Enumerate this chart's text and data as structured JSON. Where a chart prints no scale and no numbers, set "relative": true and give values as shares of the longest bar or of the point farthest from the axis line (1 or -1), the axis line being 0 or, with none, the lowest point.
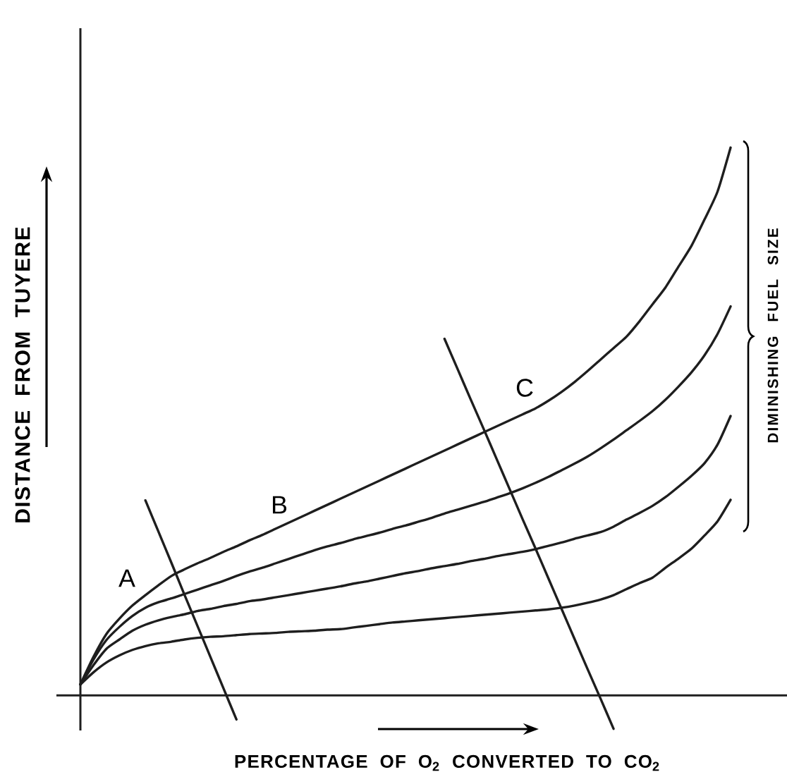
{
  "chart_data": {
    "type": "line",
    "relative": true,
    "xlabel": "PERCENTAGE OF O$_{2}$ CONVERTED TO CO$_{2}$",
    "ylabel": "DISTANCE FROM TUYERE",
    "categories": [
      null,
      null,
      null,
      null,
      null,
      null,
      null,
      null,
      null,
      null,
      null,
      null,
      null,
      null,
      null,
      null,
      null,
      null,
      null,
      null,
      null,
      null,
      null,
      null,
      null,
      null,
      null,
      null,
      null,
      null,
      null,
      null,
      null,
      null,
      null,
      null,
      null,
      null,
      null,
      null,
      null,
      null,
      null,
      null,
      null,
      null,
      null,
      null,
      null,
      null,
      null
    ],
    "series": [
      {
        "type": "line",
        "color": "#1e1e1e",
        "values": [
          0.02,
          0.07,
          0.112,
          0.14,
          0.164,
          0.183,
          0.201,
          0.218,
          0.23,
          0.241,
          0.251,
          0.262,
          0.272,
          0.283,
          0.293,
          0.304,
          0.315,
          0.326,
          0.337,
          0.348,
          0.359,
          0.37,
          0.381,
          0.392,
          0.403,
          0.414,
          0.425,
          0.436,
          0.447,
          0.458,
          0.469,
          0.48,
          0.491,
          0.502,
          0.513,
          0.524,
          0.538,
          0.554,
          0.572,
          0.592,
          0.613,
          0.634,
          0.655,
          0.683,
          0.714,
          0.745,
          0.783,
          0.821,
          0.869,
          0.92,
          1.0
        ]
      },
      {
        "type": "line",
        "color": "#1e1e1e",
        "values": [
          0.02,
          0.065,
          0.101,
          0.125,
          0.145,
          0.16,
          0.17,
          0.177,
          0.185,
          0.193,
          0.201,
          0.209,
          0.218,
          0.226,
          0.233,
          0.241,
          0.249,
          0.257,
          0.265,
          0.272,
          0.278,
          0.285,
          0.291,
          0.297,
          0.304,
          0.31,
          0.317,
          0.324,
          0.332,
          0.339,
          0.346,
          0.353,
          0.361,
          0.369,
          0.378,
          0.388,
          0.399,
          0.411,
          0.423,
          0.436,
          0.451,
          0.467,
          0.484,
          0.501,
          0.519,
          0.54,
          0.564,
          0.59,
          0.621,
          0.66,
          0.71
        ]
      },
      {
        "type": "line",
        "color": "#1e1e1e",
        "values": [
          0.02,
          0.055,
          0.085,
          0.102,
          0.118,
          0.129,
          0.137,
          0.143,
          0.148,
          0.154,
          0.158,
          0.163,
          0.167,
          0.172,
          0.175,
          0.179,
          0.183,
          0.187,
          0.191,
          0.195,
          0.199,
          0.204,
          0.208,
          0.213,
          0.218,
          0.223,
          0.227,
          0.232,
          0.236,
          0.24,
          0.245,
          0.249,
          0.254,
          0.258,
          0.262,
          0.267,
          0.273,
          0.279,
          0.286,
          0.292,
          0.298,
          0.308,
          0.321,
          0.333,
          0.346,
          0.362,
          0.381,
          0.401,
          0.424,
          0.458,
          0.51
        ]
      },
      {
        "type": "line",
        "color": "#1e1e1e",
        "values": [
          0.02,
          0.042,
          0.06,
          0.073,
          0.083,
          0.09,
          0.095,
          0.098,
          0.102,
          0.105,
          0.107,
          0.108,
          0.11,
          0.112,
          0.113,
          0.114,
          0.116,
          0.117,
          0.118,
          0.12,
          0.121,
          0.124,
          0.127,
          0.13,
          0.133,
          0.135,
          0.137,
          0.139,
          0.141,
          0.143,
          0.145,
          0.147,
          0.149,
          0.151,
          0.153,
          0.155,
          0.157,
          0.16,
          0.164,
          0.169,
          0.175,
          0.183,
          0.194,
          0.205,
          0.215,
          0.233,
          0.25,
          0.268,
          0.292,
          0.318,
          0.357
        ]
      },
      {
        "type": "line",
        "color": "#1e1e1e",
        "values": [
          null,
          null,
          null,
          null,
          null,
          0.356,
          0.299,
          0.242,
          0.184,
          0.127,
          0.07,
          0.013,
          -0.044,
          null,
          null,
          null,
          null,
          null,
          null,
          null,
          null,
          null,
          null,
          null,
          null,
          null,
          null,
          null,
          null,
          null,
          null,
          null,
          null,
          null,
          null,
          null,
          null,
          null,
          null,
          null,
          null,
          null,
          null,
          null,
          null,
          null,
          null,
          null,
          null,
          null,
          null
        ]
      },
      {
        "type": "line",
        "color": "#1e1e1e",
        "values": [
          null,
          null,
          null,
          null,
          null,
          null,
          null,
          null,
          null,
          null,
          null,
          null,
          null,
          null,
          null,
          null,
          null,
          null,
          null,
          null,
          null,
          null,
          null,
          null,
          null,
          null,
          null,
          null,
          0.651,
          0.596,
          0.541,
          0.487,
          0.432,
          0.377,
          0.322,
          0.268,
          0.213,
          0.158,
          0.103,
          0.048,
          -0.006,
          -0.061,
          null,
          null,
          null,
          null,
          null,
          null,
          null,
          null,
          null
        ]
      }
    ],
    "annotations": [
      "A",
      "B",
      "C",
      "DIMINISHING FUEL SIZE"
    ]
  }
}
